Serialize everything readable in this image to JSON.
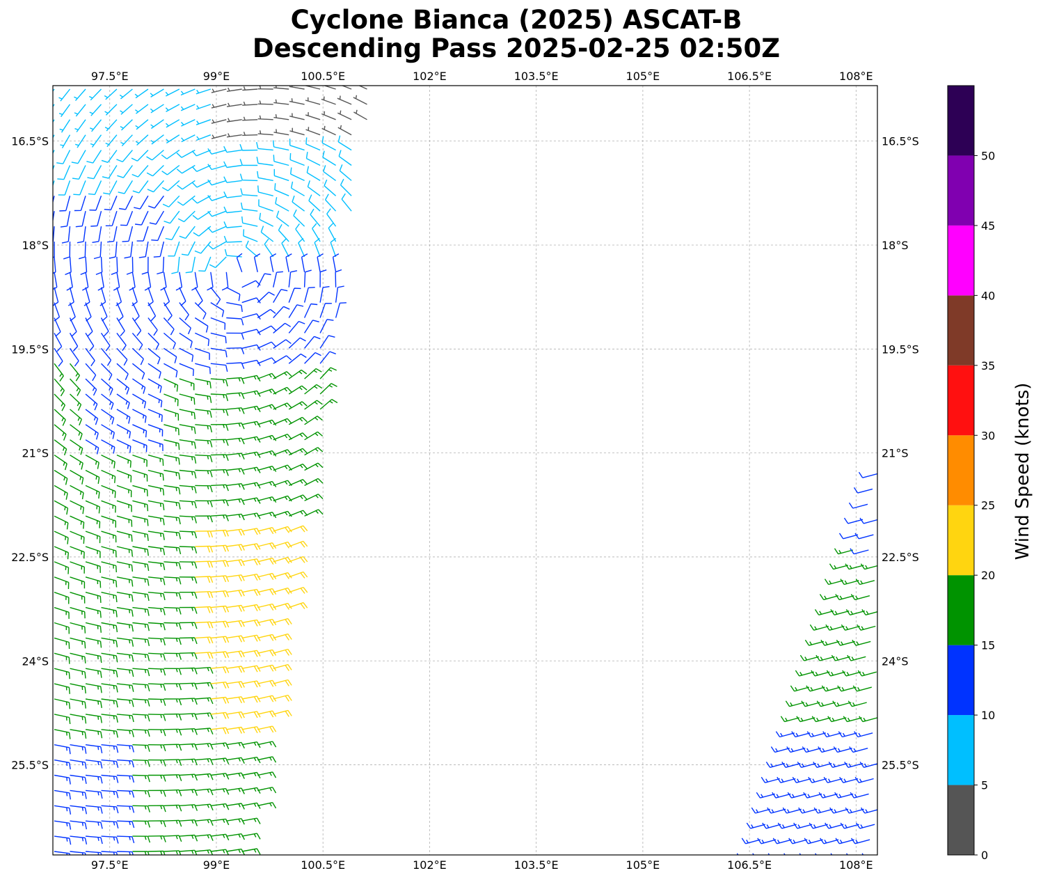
{
  "title": {
    "line1": "Cyclone Bianca (2025) ASCAT-B",
    "line2": "Descending Pass 2025-02-25 02:50Z"
  },
  "chart_data": {
    "type": "wind-barb-map",
    "lon_range": [
      96.7,
      108.3
    ],
    "lat_range": [
      -26.8,
      -15.7
    ],
    "lon_ticks": [
      {
        "value": 97.5,
        "label": "97.5°E"
      },
      {
        "value": 99,
        "label": "99°E"
      },
      {
        "value": 100.5,
        "label": "100.5°E"
      },
      {
        "value": 102,
        "label": "102°E"
      },
      {
        "value": 103.5,
        "label": "103.5°E"
      },
      {
        "value": 105,
        "label": "105°E"
      },
      {
        "value": 106.5,
        "label": "106.5°E"
      },
      {
        "value": 108,
        "label": "108°E"
      }
    ],
    "lat_ticks": [
      {
        "value": -16.5,
        "label": "16.5°S"
      },
      {
        "value": -18,
        "label": "18°S"
      },
      {
        "value": -19.5,
        "label": "19.5°S"
      },
      {
        "value": -21,
        "label": "21°S"
      },
      {
        "value": -22.5,
        "label": "22.5°S"
      },
      {
        "value": -24,
        "label": "24°S"
      },
      {
        "value": -25.5,
        "label": "25.5°S"
      }
    ],
    "grid": true,
    "colorbar": {
      "label": "Wind Speed (knots)",
      "placement": "right",
      "bins": [
        {
          "from": 0,
          "to": 5,
          "color": "#555555"
        },
        {
          "from": 5,
          "to": 10,
          "color": "#00bfff"
        },
        {
          "from": 10,
          "to": 15,
          "color": "#0033ff"
        },
        {
          "from": 15,
          "to": 20,
          "color": "#009300"
        },
        {
          "from": 20,
          "to": 25,
          "color": "#ffd510"
        },
        {
          "from": 25,
          "to": 30,
          "color": "#ff8c00"
        },
        {
          "from": 30,
          "to": 35,
          "color": "#ff1010"
        },
        {
          "from": 35,
          "to": 40,
          "color": "#7f3a28"
        },
        {
          "from": 40,
          "to": 45,
          "color": "#ff00ff"
        },
        {
          "from": 45,
          "to": 50,
          "color": "#8000b0"
        },
        {
          "from": 50,
          "to": 55,
          "color": "#2d0055"
        }
      ],
      "ticks": [
        {
          "value": 0,
          "label": "0"
        },
        {
          "value": 5,
          "label": "5"
        },
        {
          "value": 10,
          "label": "10"
        },
        {
          "value": 15,
          "label": "15"
        },
        {
          "value": 20,
          "label": "20"
        },
        {
          "value": 25,
          "label": "25"
        },
        {
          "value": 30,
          "label": "30"
        },
        {
          "value": 35,
          "label": "35"
        },
        {
          "value": 40,
          "label": "40"
        },
        {
          "value": 45,
          "label": "45"
        },
        {
          "value": 50,
          "label": "50"
        }
      ]
    },
    "swaths": [
      {
        "name": "west",
        "lon_left": [
          96.75,
          96.75,
          96.75,
          96.75,
          96.75
        ],
        "lon_right_at_top": 101.2,
        "lon_right_at_bottom": 99.5,
        "lat_top": -15.75,
        "lat_bottom": -26.75
      },
      {
        "name": "east",
        "lat_top": -21.3,
        "lat_bottom": -26.75,
        "lon_left_at_top": 108.3,
        "lon_left_at_bottom": 106.6,
        "lon_right": 108.3
      }
    ]
  }
}
